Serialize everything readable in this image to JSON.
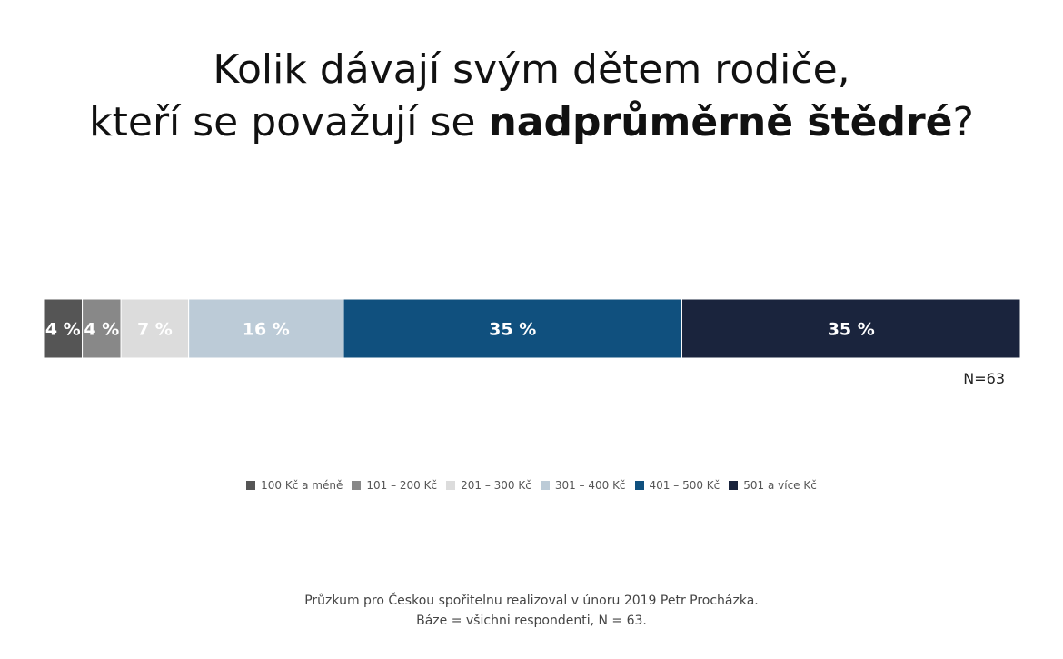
{
  "title": {
    "line1": "Kolik dávají svým dětem rodiče,",
    "line2_prefix": "kteří se považují se ",
    "line2_bold": "nadprůměrně štědré",
    "line2_suffix": "?"
  },
  "n_label": "N=63",
  "footer": {
    "line1": "Průzkum pro Českou spořitelnu realizoval v únoru 2019 Petr Procházka.",
    "line2": "Báze = všichni respondenti, N = 63."
  },
  "chart_data": {
    "type": "bar",
    "orientation": "horizontal-stacked-100",
    "categories": [
      "100 Kč a méně",
      "101 – 200 Kč",
      "201 – 300 Kč",
      "301 – 400 Kč",
      "401 – 500 Kč",
      "501 a více Kč"
    ],
    "values": [
      4,
      4,
      7,
      16,
      35,
      35
    ],
    "labels": [
      "4 %",
      "4 %",
      "7 %",
      "16 %",
      "35 %",
      "35 %"
    ],
    "colors": [
      "#555555",
      "#888888",
      "#dcdcdc",
      "#bccbd7",
      "#10507e",
      "#1a243d"
    ],
    "legend_position": "bottom",
    "grid": false
  }
}
